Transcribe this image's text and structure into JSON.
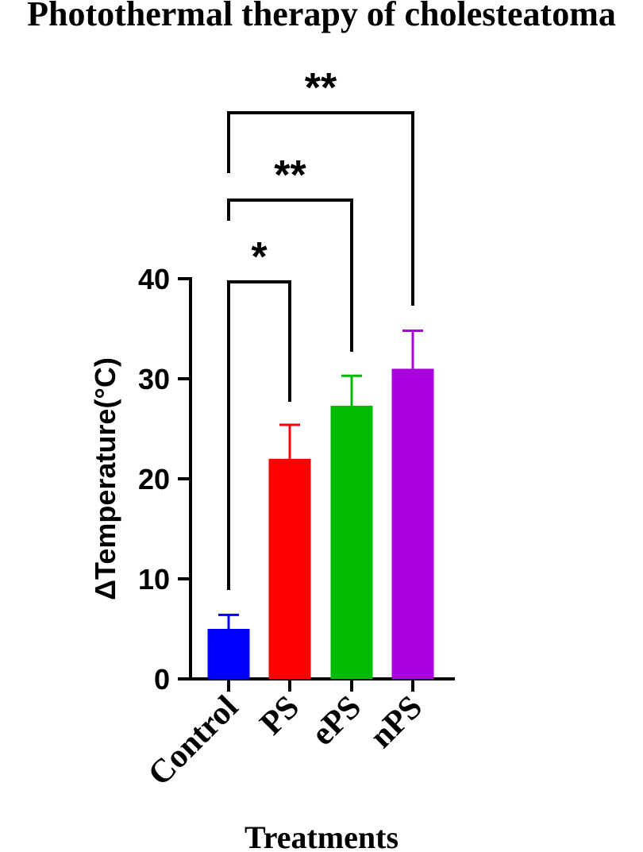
{
  "chart_data": {
    "type": "bar",
    "title": "Photothermal therapy of cholesteatoma",
    "xlabel": "Treatments",
    "ylabel": "ΔTemperature(°C)",
    "ylim": [
      0,
      40
    ],
    "yticks": [
      0,
      10,
      20,
      30,
      40
    ],
    "categories": [
      "Control",
      "PS",
      "ePS",
      "nPS"
    ],
    "values": [
      5.0,
      22.0,
      27.3,
      31.0
    ],
    "errors": [
      1.4,
      3.4,
      3.0,
      3.8
    ],
    "colors": [
      "#0000ff",
      "#ff0000",
      "#00bb00",
      "#aa00dd"
    ],
    "grid": false,
    "significance": [
      {
        "from": "Control",
        "to": "PS",
        "label": "*"
      },
      {
        "from": "Control",
        "to": "ePS",
        "label": "**"
      },
      {
        "from": "Control",
        "to": "nPS",
        "label": "**"
      }
    ]
  }
}
